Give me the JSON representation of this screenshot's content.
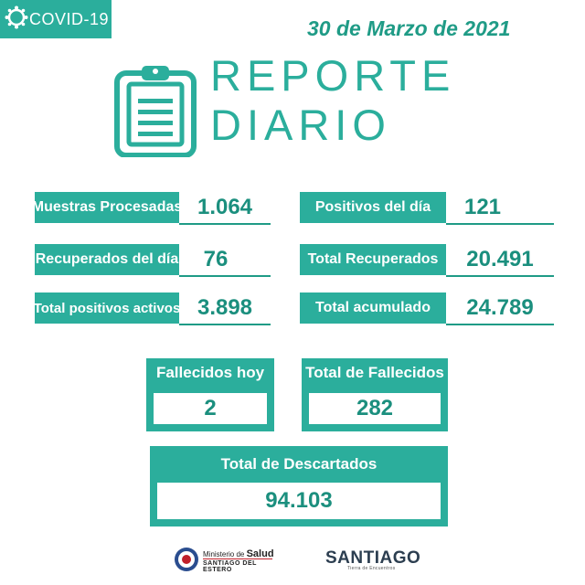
{
  "badge": "COVID-19",
  "date": "30 de Marzo de 2021",
  "title": {
    "line1": "REPORTE",
    "line2": "DIARIO"
  },
  "stats": {
    "muestras": {
      "label": "Muestras Procesadas",
      "value": "1.064"
    },
    "positivos_dia": {
      "label": "Positivos del día",
      "value": "121"
    },
    "recuperados_dia": {
      "label": "Recuperados del día",
      "value": "76"
    },
    "total_recuperados": {
      "label": "Total Recuperados",
      "value": "20.491"
    },
    "activos": {
      "label": "Total positivos activos",
      "value": "3.898"
    },
    "acumulado": {
      "label": "Total acumulado",
      "value": "24.789"
    }
  },
  "fallecidos": {
    "hoy": {
      "label": "Fallecidos hoy",
      "value": "2"
    },
    "total": {
      "label": "Total de Fallecidos",
      "value": "282"
    }
  },
  "descartados": {
    "label": "Total de Descartados",
    "value": "94.103"
  },
  "logos": {
    "ministerio_a": "Ministerio de",
    "ministerio_b": "Salud",
    "ministerio_c": "SANTIAGO DEL ESTERO",
    "santiago": "SANTIAGO",
    "santiago_sub": "Tierra de Encuentros"
  },
  "colors": {
    "accent": "#2bae9c",
    "dark": "#1b8f7e"
  }
}
